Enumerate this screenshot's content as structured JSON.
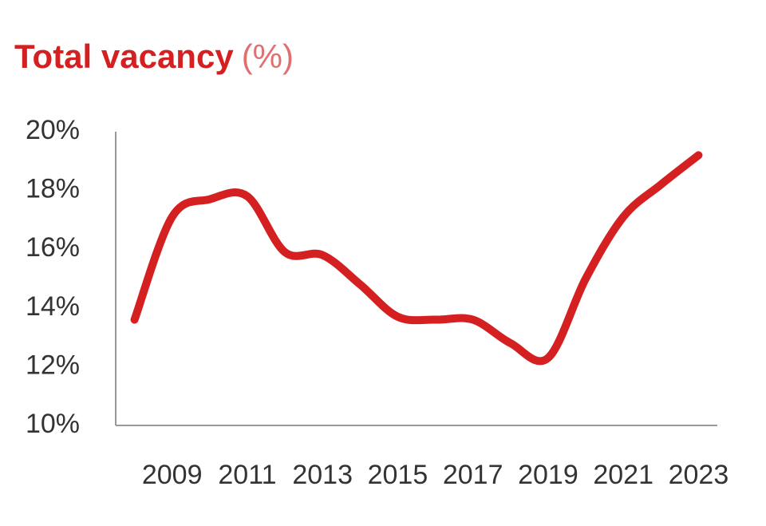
{
  "chart_data": {
    "type": "line",
    "title": "Total vacancy",
    "title_unit": "(%)",
    "x": [
      2008,
      2009,
      2010,
      2011,
      2012,
      2013,
      2014,
      2015,
      2016,
      2017,
      2018,
      2019,
      2020,
      2021,
      2022,
      2023
    ],
    "values": [
      13.6,
      17.1,
      17.7,
      17.8,
      15.9,
      15.8,
      14.8,
      13.7,
      13.6,
      13.6,
      12.8,
      12.3,
      15.0,
      17.1,
      18.2,
      19.2
    ],
    "color": "#d42020",
    "xlim": [
      2007.5,
      2023.5
    ],
    "xticks": [
      2009,
      2011,
      2013,
      2015,
      2017,
      2019,
      2021,
      2023
    ],
    "ylim": [
      10,
      20
    ],
    "yticks": [
      {
        "value": 10,
        "label": "10%"
      },
      {
        "value": 12,
        "label": "12%"
      },
      {
        "value": 14,
        "label": "14%"
      },
      {
        "value": 16,
        "label": "16%"
      },
      {
        "value": 18,
        "label": "18%"
      },
      {
        "value": 20,
        "label": "20%"
      }
    ],
    "grid": false
  }
}
